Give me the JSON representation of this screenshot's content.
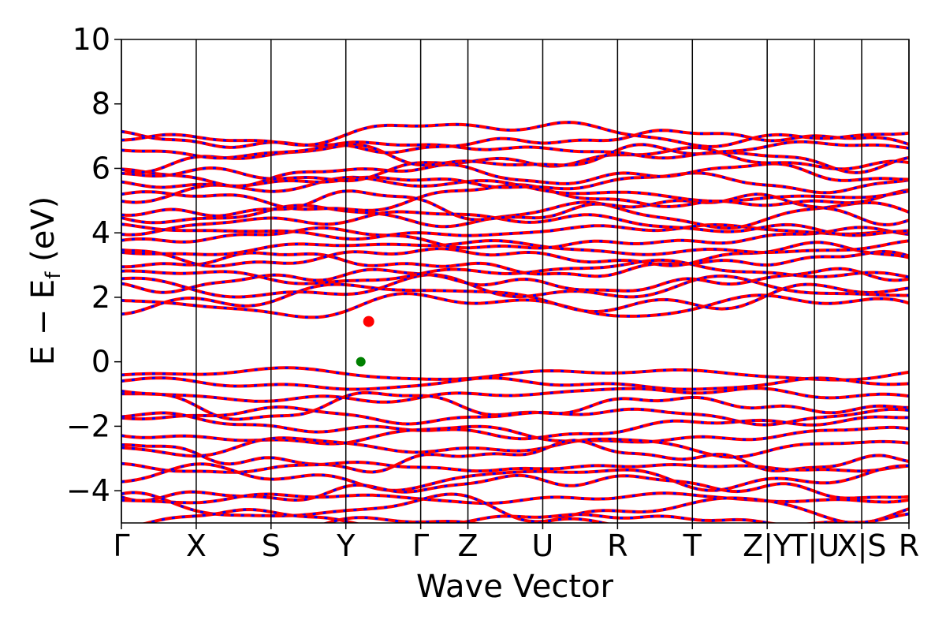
{
  "chart_data": {
    "type": "line",
    "title": "",
    "xlabel": "Wave Vector",
    "ylabel": "E − E",
    "ylabel_sub": "f",
    "ylabel_unit": " (eV)",
    "ylim": [
      -5,
      10
    ],
    "yticks": [
      "−4",
      "−2",
      "0",
      "2",
      "4",
      "6",
      "8",
      "10"
    ],
    "ytick_values": [
      -4,
      -2,
      0,
      2,
      4,
      6,
      8,
      10
    ],
    "xlim": [
      0,
      10.0
    ],
    "kpath": [
      {
        "label": "Γ",
        "x": 0.0
      },
      {
        "label": "X",
        "x": 0.95
      },
      {
        "label": "S",
        "x": 1.9
      },
      {
        "label": "Y",
        "x": 2.85
      },
      {
        "label": "Γ",
        "x": 3.8
      },
      {
        "label": "Z",
        "x": 4.4
      },
      {
        "label": "U",
        "x": 5.35
      },
      {
        "label": "R",
        "x": 6.3
      },
      {
        "label": "T",
        "x": 7.25
      },
      {
        "label": "Z|Y",
        "x": 8.2
      },
      {
        "label": "T|U",
        "x": 8.8
      },
      {
        "label": "X|S",
        "x": 9.4
      },
      {
        "label": "R",
        "x": 10.0
      }
    ],
    "series_colors": {
      "spin_up": "#ff0000",
      "spin_down": "#0000ff"
    },
    "cbm": {
      "x": 3.14,
      "y": 1.25,
      "color": "#ff0000"
    },
    "vbm": {
      "x": 3.04,
      "y": 0.0,
      "color": "#008000"
    },
    "conduction_band_min": 1.25,
    "valence_band_max": 0.0,
    "band_count_conduction": 22,
    "band_count_valence": 16
  }
}
